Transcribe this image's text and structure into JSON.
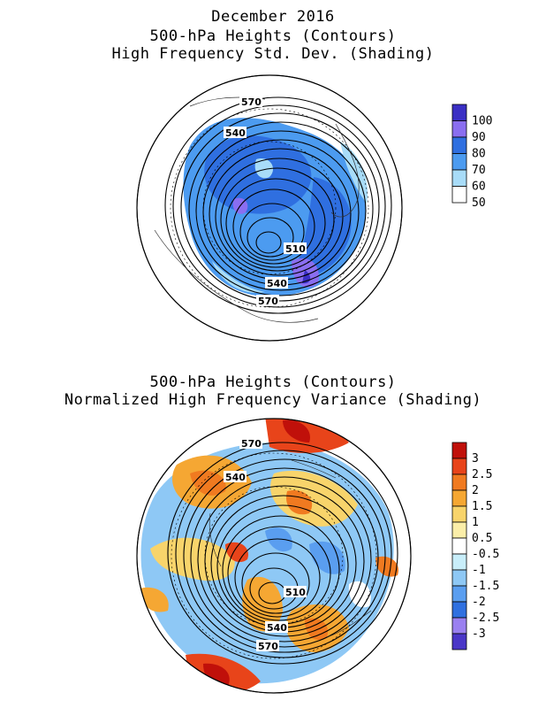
{
  "panel1": {
    "title_line1": "December 2016",
    "title_line2": "500-hPa Heights (Contours)",
    "title_line3": "High Frequency Std. Dev. (Shading)",
    "contour_labels": [
      "570",
      "540",
      "510",
      "540",
      "570"
    ],
    "colorbar": {
      "labels": [
        "100",
        "90",
        "80",
        "70",
        "60",
        "50"
      ],
      "colors": [
        "#3a2fc4",
        "#8a6ef0",
        "#2f6fe0",
        "#4c9bf0",
        "#a8dcf8",
        "#ffffff"
      ]
    }
  },
  "panel2": {
    "title_line1": "500-hPa Heights (Contours)",
    "title_line2": "Normalized High Frequency Variance (Shading)",
    "contour_labels": [
      "570",
      "540",
      "510",
      "540",
      "570"
    ],
    "colorbar": {
      "labels": [
        "3",
        "2.5",
        "2",
        "1.5",
        "1",
        "0.5",
        "-0.5",
        "-1",
        "-1.5",
        "-2",
        "-2.5",
        "-3"
      ],
      "colors": [
        "#c0100a",
        "#e8441a",
        "#f07a20",
        "#f5a733",
        "#f8d46b",
        "#fbeea8",
        "#ffffff",
        "#c8eefa",
        "#8ec8f5",
        "#5a9ef0",
        "#2f70e0",
        "#9a80f0",
        "#4a36c8"
      ]
    }
  }
}
